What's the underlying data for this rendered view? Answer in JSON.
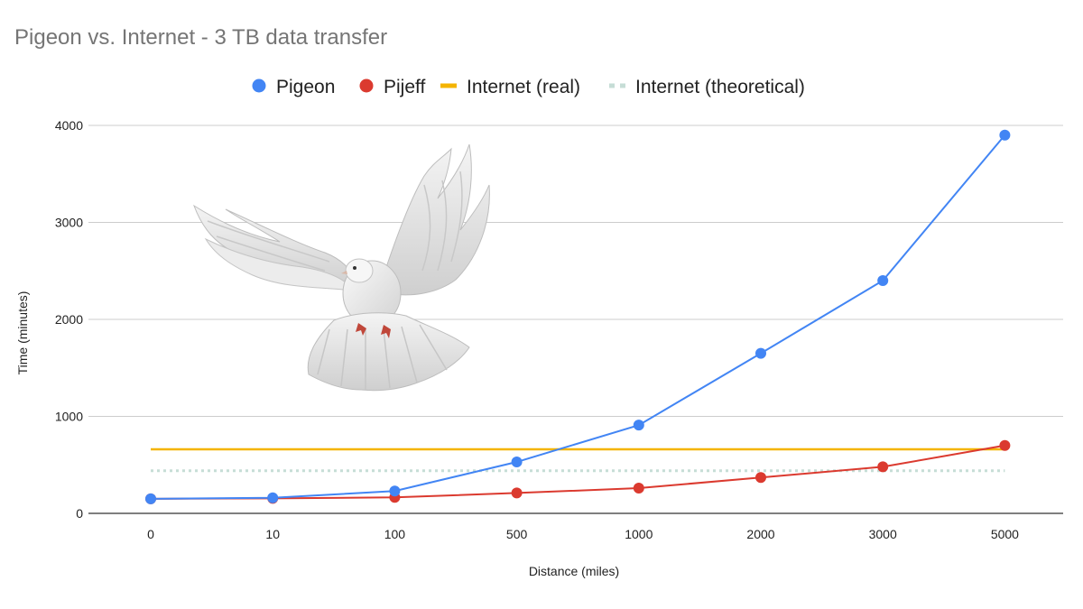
{
  "chart_data": {
    "type": "line",
    "title": "Pigeon vs. Internet - 3 TB data transfer",
    "xlabel": "Distance (miles)",
    "ylabel": "Time (minutes)",
    "categories": [
      "0",
      "10",
      "100",
      "500",
      "1000",
      "2000",
      "3000",
      "5000"
    ],
    "y_ticks": [
      "0",
      "1000",
      "2000",
      "3000",
      "4000"
    ],
    "ylim": [
      0,
      4000
    ],
    "grid": true,
    "legend_position": "top",
    "series": [
      {
        "name": "Pigeon",
        "style": "line-markers",
        "color": "#4285f4",
        "values": [
          150,
          160,
          230,
          530,
          910,
          1650,
          2400,
          3900
        ]
      },
      {
        "name": "Pijeff",
        "style": "line-markers",
        "color": "#db3a2f",
        "values": [
          150,
          155,
          165,
          210,
          260,
          370,
          480,
          700
        ]
      },
      {
        "name": "Internet (real)",
        "style": "solid",
        "color": "#f4b400",
        "values": [
          660,
          660,
          660,
          660,
          660,
          660,
          660,
          660
        ]
      },
      {
        "name": "Internet (theoretical)",
        "style": "dotted",
        "color": "#c6ddd6",
        "values": [
          440,
          440,
          440,
          440,
          440,
          440,
          440,
          440
        ]
      }
    ],
    "decoration": "white-dove-picture"
  }
}
